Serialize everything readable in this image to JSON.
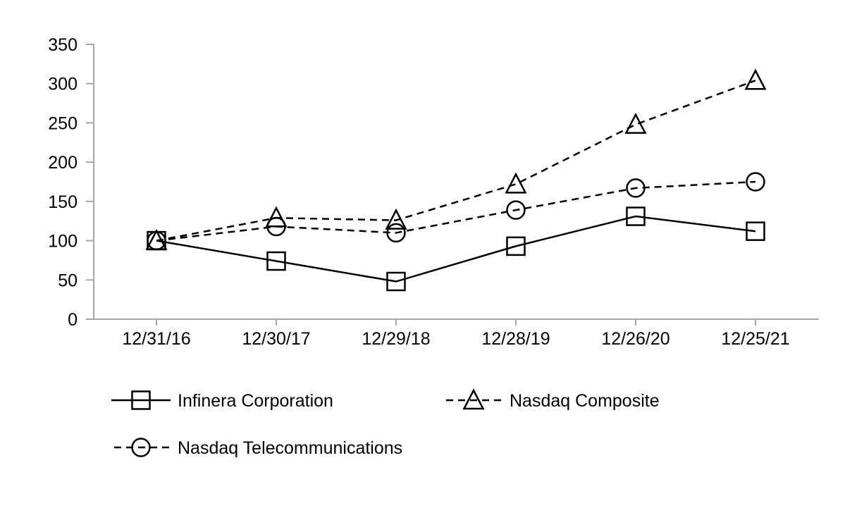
{
  "chart_data": {
    "type": "line",
    "title": "",
    "xlabel": "",
    "ylabel": "",
    "categories": [
      "12/31/16",
      "12/30/17",
      "12/29/18",
      "12/28/19",
      "12/26/20",
      "12/25/21"
    ],
    "y_ticks": [
      "0",
      "50",
      "100",
      "150",
      "200",
      "250",
      "300",
      "350"
    ],
    "ylim": [
      0,
      350
    ],
    "y_tick_step": 50,
    "grid": false,
    "legend_position": "below-chart",
    "series": [
      {
        "name": "Infinera Corporation",
        "marker": "square",
        "line_style": "solid",
        "values": [
          100,
          74,
          48,
          93,
          131,
          112
        ]
      },
      {
        "name": "Nasdaq Composite",
        "marker": "triangle",
        "line_style": "dashed",
        "values": [
          100,
          129,
          126,
          172,
          248,
          304
        ]
      },
      {
        "name": "Nasdaq Telecommunications",
        "marker": "circle",
        "line_style": "dashed",
        "values": [
          100,
          118,
          110,
          139,
          167,
          175
        ]
      }
    ],
    "colors": {
      "series_stroke": "#000000",
      "axis": "#a6a6a6",
      "text": "#000000",
      "background": "#ffffff"
    }
  }
}
